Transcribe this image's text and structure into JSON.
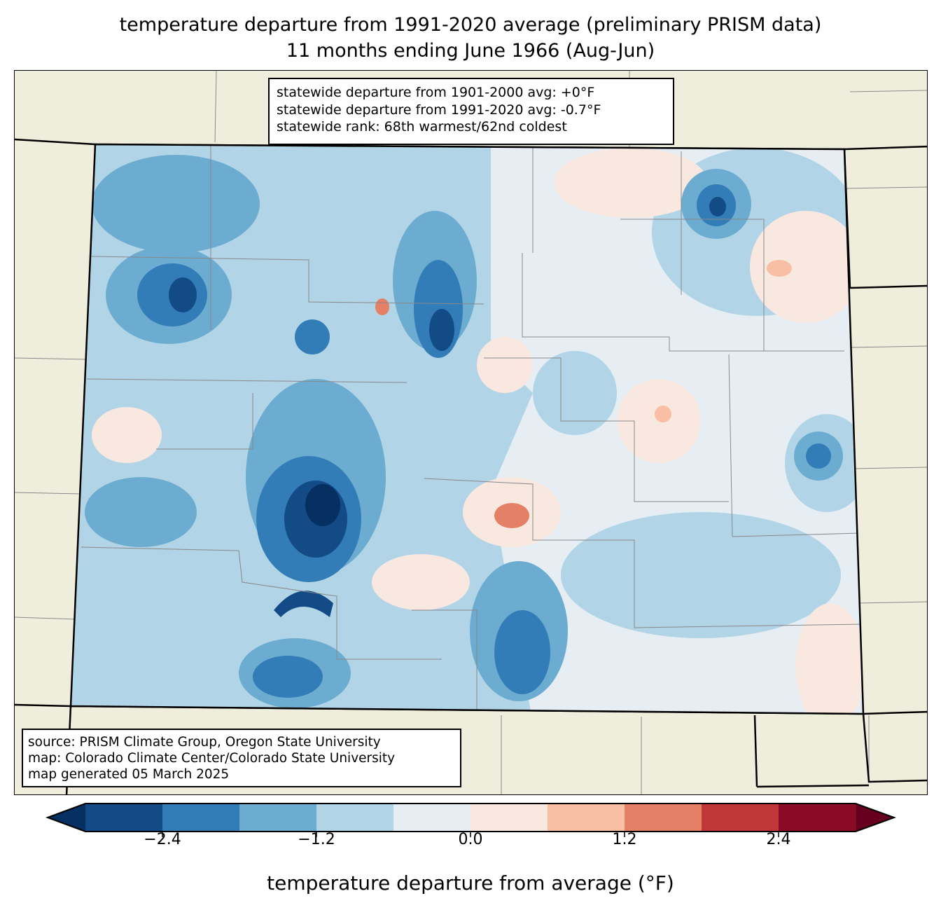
{
  "title": {
    "line1": "temperature departure from 1991-2020 average (preliminary PRISM data)",
    "line2": "11 months ending June 1966 (Aug-Jun)"
  },
  "stats": {
    "line1": "statewide departure from 1901-2000 avg: +0°F",
    "line2": "statewide departure from 1991-2020 avg: -0.7°F",
    "line3": "statewide rank: 68th warmest/62nd coldest"
  },
  "source": {
    "line1": "source: PRISM Climate Group, Oregon State University",
    "line2": "map: Colorado Climate Center/Colorado State University",
    "line3": "map generated 05 March 2025"
  },
  "colorbar": {
    "label": "temperature departure from average (°F)",
    "ticks": [
      "−2.4",
      "−1.2",
      "0.0",
      "1.2",
      "2.4"
    ],
    "tick_values": [
      -2.4,
      -1.2,
      0.0,
      1.2,
      2.4
    ],
    "levels": [
      -3.0,
      -2.4,
      -1.8,
      -1.2,
      -0.6,
      0.0,
      0.6,
      1.2,
      1.8,
      2.4,
      3.0
    ],
    "colors": [
      "#134b87",
      "#327db7",
      "#6bacd0",
      "#b1d4e7",
      "#e6eef4",
      "#f9e8e0",
      "#f8bfa4",
      "#e48066",
      "#c13639",
      "#8a0b25"
    ],
    "under_color": "#053061",
    "over_color": "#67001f"
  }
}
